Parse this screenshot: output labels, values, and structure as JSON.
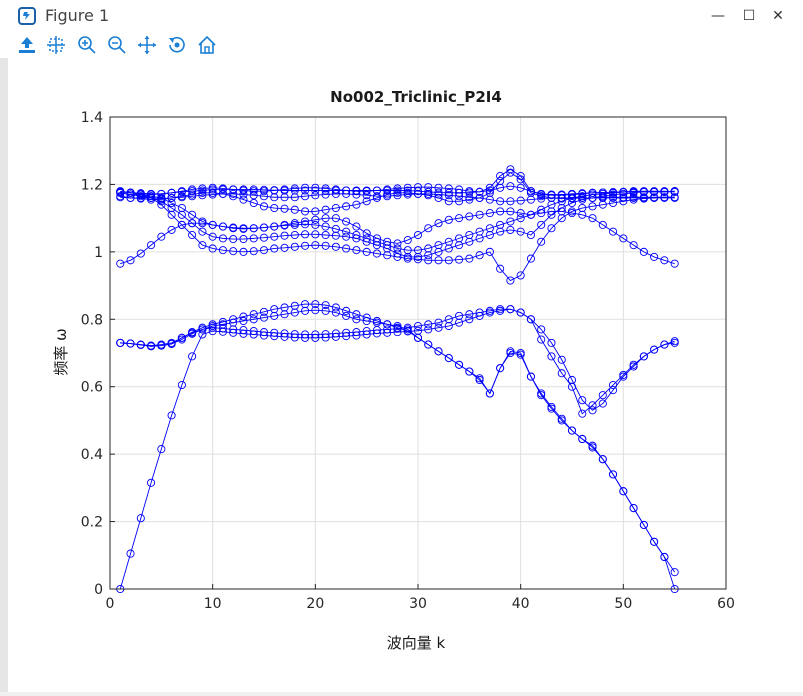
{
  "window": {
    "title": "Figure 1",
    "controls": {
      "minimize": "—",
      "maximize": "☐",
      "close": "✕"
    }
  },
  "toolbar": {
    "tools": [
      "save-icon",
      "data-cursor-icon",
      "zoom-in-icon",
      "zoom-out-icon",
      "pan-icon",
      "rotate-icon",
      "home-icon"
    ]
  },
  "colors": {
    "series": "#0000ff",
    "accent": "#1a7fd4"
  },
  "chart_data": {
    "type": "line",
    "title": "No002_Triclinic_P2I4",
    "xlabel": "波向量 k",
    "ylabel": "频率 ω",
    "xlim": [
      0,
      60
    ],
    "ylim": [
      0,
      1.4
    ],
    "xticks": [
      "0",
      "10",
      "20",
      "30",
      "40",
      "50",
      "60"
    ],
    "yticks": [
      "0",
      "0.2",
      "0.4",
      "0.6",
      "0.8",
      "1",
      "1.2",
      "1.4"
    ],
    "grid": true,
    "marker": "circle",
    "x": [
      1,
      2,
      3,
      4,
      5,
      6,
      7,
      8,
      9,
      10,
      11,
      12,
      13,
      14,
      15,
      16,
      17,
      18,
      19,
      20,
      21,
      22,
      23,
      24,
      25,
      26,
      27,
      28,
      29,
      30,
      31,
      32,
      33,
      34,
      35,
      36,
      37,
      38,
      39,
      40,
      41,
      42,
      43,
      44,
      45,
      46,
      47,
      48,
      49,
      50,
      51,
      52,
      53,
      54,
      55
    ],
    "series": [
      {
        "values": [
          0,
          0.105,
          0.21,
          0.315,
          0.415,
          0.515,
          0.605,
          0.69,
          0.755,
          0.765,
          0.763,
          0.76,
          0.757,
          0.755,
          0.752,
          0.75,
          0.748,
          0.746,
          0.745,
          0.745,
          0.746,
          0.748,
          0.75,
          0.752,
          0.755,
          0.758,
          0.76,
          0.762,
          0.764,
          0.766,
          0.77,
          0.775,
          0.78,
          0.79,
          0.8,
          0.81,
          0.82,
          0.825,
          0.83,
          0.82,
          0.8,
          0.77,
          0.73,
          0.68,
          0.62,
          0.56,
          0.53,
          0.55,
          0.59,
          0.63,
          0.66,
          0.69,
          0.71,
          0.725,
          0.735
        ]
      },
      {
        "values": [
          0.73,
          0.728,
          0.725,
          0.722,
          0.725,
          0.73,
          0.745,
          0.76,
          0.77,
          0.775,
          0.773,
          0.77,
          0.768,
          0.765,
          0.762,
          0.76,
          0.758,
          0.756,
          0.755,
          0.755,
          0.756,
          0.758,
          0.76,
          0.762,
          0.765,
          0.768,
          0.77,
          0.772,
          0.775,
          0.78,
          0.785,
          0.79,
          0.8,
          0.81,
          0.815,
          0.82,
          0.825,
          0.83,
          0.83,
          0.82,
          0.8,
          0.74,
          0.69,
          0.64,
          0.6,
          0.52,
          0.545,
          0.575,
          0.605,
          0.635,
          0.665,
          0.69,
          0.71,
          0.725,
          0.73
        ]
      },
      {
        "values": [
          0.73,
          0.728,
          0.724,
          0.72,
          0.722,
          0.727,
          0.74,
          0.757,
          0.77,
          0.78,
          0.785,
          0.79,
          0.795,
          0.8,
          0.805,
          0.81,
          0.815,
          0.82,
          0.825,
          0.827,
          0.825,
          0.82,
          0.81,
          0.8,
          0.795,
          0.79,
          0.785,
          0.78,
          0.77,
          0.745,
          0.725,
          0.705,
          0.685,
          0.665,
          0.645,
          0.625,
          0.58,
          0.655,
          0.7,
          0.695,
          0.63,
          0.58,
          0.54,
          0.505,
          0.47,
          0.445,
          0.425,
          0.385,
          0.34,
          0.29,
          0.24,
          0.19,
          0.14,
          0.095,
          0.05
        ]
      },
      {
        "values": [
          0.73,
          0.728,
          0.724,
          0.72,
          0.722,
          0.727,
          0.745,
          0.762,
          0.775,
          0.785,
          0.792,
          0.8,
          0.808,
          0.815,
          0.822,
          0.83,
          0.835,
          0.84,
          0.845,
          0.845,
          0.842,
          0.835,
          0.825,
          0.815,
          0.805,
          0.795,
          0.785,
          0.775,
          0.765,
          0.745,
          0.725,
          0.705,
          0.685,
          0.665,
          0.645,
          0.62,
          0.58,
          0.655,
          0.705,
          0.7,
          0.63,
          0.575,
          0.535,
          0.5,
          0.47,
          0.445,
          0.42,
          0.385,
          0.34,
          0.29,
          0.24,
          0.19,
          0.14,
          0.095,
          0
        ]
      },
      {
        "values": [
          0.965,
          0.975,
          0.995,
          1.02,
          1.045,
          1.065,
          1.08,
          1.085,
          1.085,
          1.08,
          1.075,
          1.07,
          1.068,
          1.07,
          1.072,
          1.075,
          1.08,
          1.085,
          1.09,
          1.095,
          1.1,
          1.1,
          1.09,
          1.075,
          1.055,
          1.04,
          1.03,
          1.025,
          1.035,
          1.05,
          1.07,
          1.085,
          1.095,
          1.1,
          1.105,
          1.11,
          1.115,
          1.12,
          1.12,
          1.115,
          1.11,
          1.115,
          1.12,
          1.12,
          1.115,
          1.11,
          1.1,
          1.08,
          1.06,
          1.04,
          1.02,
          1.0,
          0.985,
          0.975,
          0.965
        ]
      },
      {
        "values": [
          1.175,
          1.17,
          1.17,
          1.165,
          1.16,
          1.145,
          1.13,
          1.11,
          1.09,
          1.08,
          1.075,
          1.072,
          1.07,
          1.07,
          1.072,
          1.075,
          1.078,
          1.08,
          1.082,
          1.08,
          1.075,
          1.068,
          1.06,
          1.05,
          1.04,
          1.03,
          1.02,
          1.01,
          1.005,
          1.005,
          1.01,
          1.02,
          1.03,
          1.04,
          1.05,
          1.06,
          1.07,
          1.08,
          1.09,
          1.1,
          1.11,
          1.125,
          1.14,
          1.15,
          1.16,
          1.165,
          1.17,
          1.172,
          1.175,
          1.177,
          1.18,
          1.18,
          1.18,
          1.18,
          1.178
        ]
      },
      {
        "values": [
          1.175,
          1.17,
          1.165,
          1.16,
          1.15,
          1.13,
          1.11,
          1.085,
          1.06,
          1.045,
          1.04,
          1.038,
          1.038,
          1.04,
          1.042,
          1.045,
          1.048,
          1.05,
          1.052,
          1.052,
          1.05,
          1.048,
          1.045,
          1.04,
          1.03,
          1.02,
          1.01,
          0.995,
          0.985,
          0.985,
          0.99,
          1.0,
          1.01,
          1.02,
          1.03,
          1.04,
          1.05,
          1.06,
          1.065,
          1.06,
          1.05,
          1.08,
          1.11,
          1.13,
          1.145,
          1.155,
          1.16,
          1.165,
          1.17,
          1.172,
          1.175,
          1.178,
          1.178,
          1.178,
          1.178
        ]
      },
      {
        "values": [
          1.18,
          1.175,
          1.17,
          1.16,
          1.14,
          1.11,
          1.08,
          1.05,
          1.02,
          1.01,
          1.005,
          1.002,
          1.0,
          1.002,
          1.005,
          1.01,
          1.012,
          1.015,
          1.018,
          1.02,
          1.018,
          1.015,
          1.01,
          1.005,
          1.0,
          0.995,
          0.99,
          0.985,
          0.98,
          0.978,
          0.975,
          0.975,
          0.975,
          0.977,
          0.98,
          0.99,
          1.0,
          0.95,
          0.915,
          0.93,
          0.98,
          1.03,
          1.07,
          1.1,
          1.12,
          1.13,
          1.135,
          1.14,
          1.145,
          1.15,
          1.155,
          1.158,
          1.16,
          1.162,
          1.162
        ]
      },
      {
        "values": [
          1.165,
          1.16,
          1.158,
          1.155,
          1.155,
          1.16,
          1.165,
          1.17,
          1.175,
          1.175,
          1.172,
          1.165,
          1.155,
          1.145,
          1.135,
          1.13,
          1.128,
          1.125,
          1.12,
          1.12,
          1.125,
          1.13,
          1.135,
          1.14,
          1.15,
          1.16,
          1.17,
          1.175,
          1.175,
          1.172,
          1.168,
          1.16,
          1.15,
          1.15,
          1.155,
          1.16,
          1.175,
          1.21,
          1.235,
          1.215,
          1.175,
          1.165,
          1.16,
          1.158,
          1.158,
          1.16,
          1.16,
          1.162,
          1.162,
          1.162,
          1.162,
          1.162,
          1.162,
          1.162,
          1.162
        ]
      },
      {
        "values": [
          1.178,
          1.175,
          1.172,
          1.17,
          1.172,
          1.175,
          1.18,
          1.185,
          1.188,
          1.19,
          1.188,
          1.185,
          1.182,
          1.18,
          1.18,
          1.182,
          1.185,
          1.188,
          1.19,
          1.19,
          1.188,
          1.185,
          1.182,
          1.18,
          1.18,
          1.182,
          1.185,
          1.188,
          1.19,
          1.192,
          1.192,
          1.19,
          1.188,
          1.185,
          1.18,
          1.178,
          1.19,
          1.225,
          1.245,
          1.225,
          1.18,
          1.17,
          1.168,
          1.168,
          1.17,
          1.172,
          1.175,
          1.176,
          1.177,
          1.178,
          1.178,
          1.178,
          1.178,
          1.178,
          1.18
        ]
      },
      {
        "values": [
          1.178,
          1.176,
          1.174,
          1.172,
          1.172,
          1.175,
          1.178,
          1.18,
          1.182,
          1.185,
          1.185,
          1.185,
          1.185,
          1.185,
          1.184,
          1.183,
          1.182,
          1.182,
          1.182,
          1.182,
          1.182,
          1.182,
          1.182,
          1.182,
          1.182,
          1.182,
          1.182,
          1.182,
          1.182,
          1.18,
          1.178,
          1.176,
          1.175,
          1.175,
          1.176,
          1.178,
          1.182,
          1.19,
          1.195,
          1.19,
          1.18,
          1.172,
          1.17,
          1.17,
          1.172,
          1.174,
          1.175,
          1.176,
          1.177,
          1.178,
          1.178,
          1.178,
          1.178,
          1.178,
          1.18
        ]
      },
      {
        "values": [
          1.162,
          1.16,
          1.16,
          1.16,
          1.158,
          1.16,
          1.162,
          1.165,
          1.168,
          1.17,
          1.172,
          1.172,
          1.17,
          1.168,
          1.165,
          1.162,
          1.162,
          1.162,
          1.165,
          1.168,
          1.17,
          1.172,
          1.172,
          1.17,
          1.168,
          1.165,
          1.165,
          1.168,
          1.17,
          1.172,
          1.172,
          1.17,
          1.168,
          1.165,
          1.162,
          1.16,
          1.155,
          1.15,
          1.15,
          1.152,
          1.155,
          1.158,
          1.16,
          1.16,
          1.16,
          1.16,
          1.16,
          1.16,
          1.16,
          1.16,
          1.16,
          1.16,
          1.16,
          1.16,
          1.16
        ]
      }
    ]
  }
}
